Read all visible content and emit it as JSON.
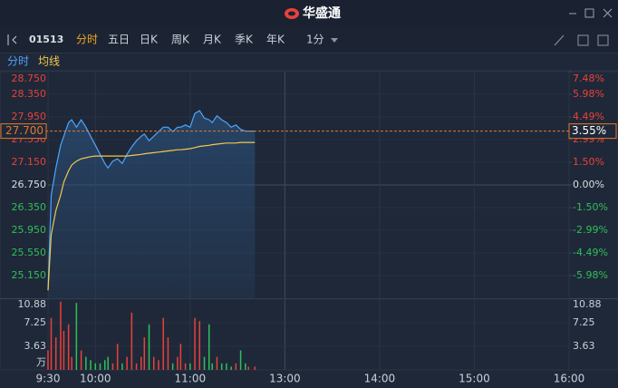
{
  "chart_data": {
    "type": "line",
    "brand": "华盛通",
    "code": "01513",
    "tabs": [
      "分时",
      "五日",
      "日K",
      "周K",
      "月K",
      "季K",
      "年K"
    ],
    "period": "1分",
    "x": [
      0,
      2,
      5,
      8,
      10,
      13,
      15,
      18,
      21,
      24,
      27,
      30,
      33,
      36,
      38,
      41,
      44,
      47,
      50,
      53,
      56,
      59,
      61,
      64,
      67,
      70,
      73,
      76,
      79,
      82,
      84,
      87,
      90,
      93,
      96,
      99,
      102,
      104,
      107,
      110,
      113,
      116,
      119,
      122,
      125,
      127,
      131
    ],
    "series": [
      {
        "name": "分时",
        "color": "#4da6ff",
        "values": [
          24.89,
          26.57,
          27.05,
          27.45,
          27.61,
          27.85,
          27.9,
          27.77,
          27.9,
          27.77,
          27.61,
          27.45,
          27.29,
          27.13,
          27.05,
          27.17,
          27.21,
          27.13,
          27.29,
          27.42,
          27.53,
          27.61,
          27.65,
          27.53,
          27.61,
          27.69,
          27.77,
          27.77,
          27.69,
          27.77,
          27.77,
          27.81,
          27.77,
          28.01,
          28.06,
          27.93,
          27.9,
          27.85,
          27.97,
          27.9,
          27.85,
          27.77,
          27.81,
          27.73,
          27.7,
          27.7,
          27.7
        ]
      },
      {
        "name": "均线",
        "color": "#f2c94c",
        "values": [
          24.89,
          25.87,
          26.3,
          26.57,
          26.8,
          27.0,
          27.1,
          27.17,
          27.21,
          27.23,
          27.25,
          27.26,
          27.26,
          27.26,
          27.26,
          27.26,
          27.26,
          27.26,
          27.26,
          27.27,
          27.28,
          27.29,
          27.3,
          27.31,
          27.32,
          27.33,
          27.34,
          27.35,
          27.36,
          27.37,
          27.37,
          27.38,
          27.39,
          27.41,
          27.43,
          27.44,
          27.45,
          27.46,
          27.47,
          27.48,
          27.49,
          27.49,
          27.49,
          27.5,
          27.5,
          27.5,
          27.5
        ]
      }
    ],
    "xlim": [
      0,
      330
    ],
    "xticks": [
      {
        "value": 0,
        "label": "9:30"
      },
      {
        "value": 30,
        "label": "10:00"
      },
      {
        "value": 90,
        "label": "11:00"
      },
      {
        "value": 150,
        "label": "13:00"
      },
      {
        "value": 210,
        "label": "14:00"
      },
      {
        "value": 270,
        "label": "15:00"
      },
      {
        "value": 330,
        "label": "16:00"
      }
    ],
    "ylim": [
      24.75,
      28.75
    ],
    "yticks": [
      {
        "value": 28.75,
        "label": "28.750"
      },
      {
        "value": 28.35,
        "label": "28.350"
      },
      {
        "value": 27.95,
        "label": "27.950"
      },
      {
        "value": 27.55,
        "label": "27.550"
      },
      {
        "value": 27.15,
        "label": "27.150"
      },
      {
        "value": 26.75,
        "label": "26.750"
      },
      {
        "value": 26.35,
        "label": "26.350"
      },
      {
        "value": 25.95,
        "label": "25.950"
      },
      {
        "value": 25.55,
        "label": "25.550"
      },
      {
        "value": 25.15,
        "label": "25.150"
      }
    ],
    "y2lim": [
      -7.477,
      7.477
    ],
    "y2ticks": [
      {
        "value": 7.48,
        "label": "7.48%"
      },
      {
        "value": 5.98,
        "label": "5.98%"
      },
      {
        "value": 4.49,
        "label": "4.49%"
      },
      {
        "value": 2.99,
        "label": "2.99%"
      },
      {
        "value": 1.5,
        "label": "1.50%"
      },
      {
        "value": 0,
        "label": "0.00%"
      },
      {
        "value": -1.5,
        "label": "-1.50%"
      },
      {
        "value": -2.99,
        "label": "-2.99%"
      },
      {
        "value": -4.49,
        "label": "-4.49%"
      },
      {
        "value": -5.98,
        "label": "-5.98%"
      }
    ],
    "current": {
      "price": {
        "value": 27.7,
        "label": "27.700"
      },
      "change": {
        "value": 3.55,
        "label": "3.55%"
      },
      "color": "#e07a2e"
    },
    "up_color": "#e8413c",
    "down_color": "#2fbf5a",
    "volume": {
      "unit": "万",
      "values": [
        3,
        8,
        5,
        10.5,
        6,
        7,
        2,
        10.3,
        3,
        2,
        1.5,
        1,
        1,
        1.5,
        2,
        1,
        4,
        1,
        2,
        8.8,
        1,
        2,
        5,
        7,
        2,
        1.5,
        8,
        5,
        1,
        2,
        4,
        1,
        1,
        8,
        7.5,
        2,
        7,
        1,
        2,
        1,
        1,
        0.5,
        1,
        3,
        1,
        0.5,
        0.5
      ],
      "ylim": [
        0,
        10.88
      ],
      "yticks": [
        10.88,
        7.25,
        3.63
      ]
    },
    "grid": true
  }
}
